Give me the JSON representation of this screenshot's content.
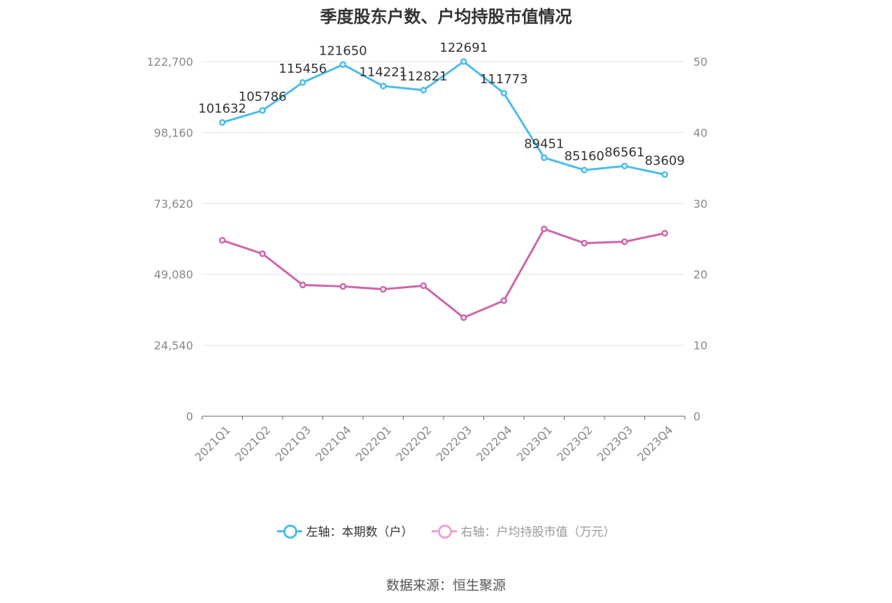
{
  "chart_data": {
    "type": "line",
    "title": "季度股东户数、户均持股市值情况",
    "categories": [
      "2021Q1",
      "2021Q2",
      "2021Q3",
      "2021Q4",
      "2022Q1",
      "2022Q2",
      "2022Q3",
      "2022Q4",
      "2023Q1",
      "2023Q2",
      "2023Q3",
      "2023Q4"
    ],
    "left_axis": {
      "ticks": [
        "0",
        "24,540",
        "49,080",
        "73,620",
        "98,160",
        "122,700"
      ],
      "ylim": [
        0,
        122700
      ]
    },
    "right_axis": {
      "ticks": [
        "0",
        "10",
        "20",
        "30",
        "40",
        "50"
      ],
      "ylim": [
        0,
        50
      ]
    },
    "series": [
      {
        "name": "左轴：本期数（户）",
        "axis": "left",
        "color": "#4dbcec",
        "values": [
          101632,
          105786,
          115456,
          121650,
          114221,
          112821,
          122691,
          111773,
          89451,
          85160,
          86561,
          83609
        ],
        "labels": [
          "101632",
          "105786",
          "115456",
          "121650",
          "114221",
          "112821",
          "122691",
          "111773",
          "89451",
          "85160",
          "86561",
          "83609"
        ]
      },
      {
        "name": "右轴：户均持股市值（万元）",
        "axis": "right",
        "color": "#d065aa",
        "values": [
          24.8,
          22.9,
          18.5,
          18.3,
          17.9,
          18.4,
          13.9,
          16.3,
          26.4,
          24.4,
          24.6,
          25.8
        ]
      }
    ],
    "grid": true,
    "legend_position": "bottom"
  },
  "legend": [
    {
      "label": "左轴：本期数（户）",
      "color": "#4dbcec",
      "text_color": "#333333"
    },
    {
      "label": "右轴：户均持股市值（万元）",
      "color": "#eaa4d4",
      "text_color": "#999999"
    }
  ],
  "source": "数据来源：恒生聚源"
}
